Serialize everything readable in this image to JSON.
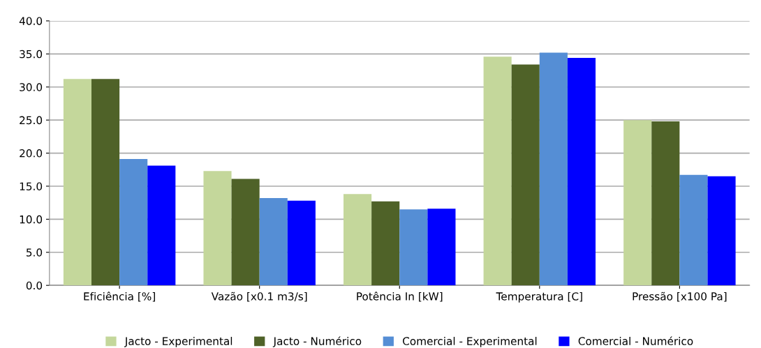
{
  "chart_data": {
    "type": "bar",
    "categories": [
      "Eficiência [%]",
      "Vazão [x0.1 m3/s]",
      "Potência In [kW]",
      "Temperatura [C]",
      "Pressão [x100 Pa]"
    ],
    "series": [
      {
        "name": "Jacto - Experimental",
        "color": "#c4d79b",
        "values": [
          31.2,
          17.3,
          13.8,
          34.6,
          25.0
        ]
      },
      {
        "name": "Jacto - Numérico",
        "color": "#4f6228",
        "values": [
          31.2,
          16.1,
          12.7,
          33.4,
          24.8
        ]
      },
      {
        "name": "Comercial - Experimental",
        "color": "#558ed5",
        "values": [
          19.1,
          13.2,
          11.5,
          35.2,
          16.7
        ]
      },
      {
        "name": "Comercial - Numérico",
        "color": "#0000ff",
        "values": [
          18.1,
          12.8,
          11.6,
          34.4,
          16.5
        ]
      }
    ],
    "ylim": [
      0,
      40
    ],
    "yticks": [
      {
        "value": 0,
        "label": "0.0"
      },
      {
        "value": 5,
        "label": "5.0"
      },
      {
        "value": 10,
        "label": "10.0"
      },
      {
        "value": 15,
        "label": "15.0"
      },
      {
        "value": 20,
        "label": "20.0"
      },
      {
        "value": 25,
        "label": "25.0"
      },
      {
        "value": 30,
        "label": "30.0"
      },
      {
        "value": 35,
        "label": "35.0"
      },
      {
        "value": 40,
        "label": "40.0"
      }
    ],
    "grid": "y",
    "legend": "bottom"
  }
}
